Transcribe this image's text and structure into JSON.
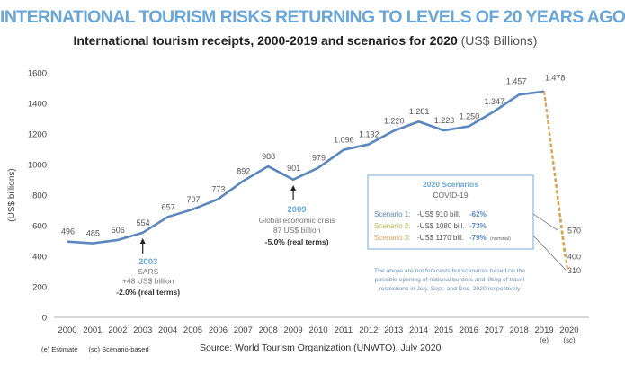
{
  "title": "INTERNATIONAL TOURISM RISKS RETURNING TO LEVELS OF 20 YEARS AGO",
  "subtitle_main": "International tourism receipts, 2000-2019 and scenarios for 2020",
  "subtitle_unit": "(US$ Billions)",
  "footnote_e": "(e) Estimate",
  "footnote_sc": "(sc) Scenario-based",
  "source": "Source: World Tourism Organization (UNWTO), July 2020",
  "colors": {
    "title": "#6aa7d8",
    "line": "#5b86be",
    "scenario1": "#5b86be",
    "scenario2": "#b7b848",
    "scenario3": "#e0a458",
    "annotation_blue": "#6aa7d8"
  },
  "chart_data": {
    "type": "line",
    "ylabel": "(US$ billions)",
    "ylim": [
      0,
      1600
    ],
    "yticks": [
      "0",
      "200",
      "400",
      "600",
      "800",
      "1000",
      "1200",
      "1400",
      "1600"
    ],
    "x_labels": [
      "2000",
      "2001",
      "2002",
      "2003",
      "2004",
      "2005",
      "2006",
      "2007",
      "2008",
      "2009",
      "2010",
      "2011",
      "2012",
      "2013",
      "2014",
      "2015",
      "2016",
      "2017",
      "2018",
      "2019",
      "2020"
    ],
    "x_sublabels": {
      "2019": "(e)",
      "2020": "(sc)"
    },
    "series": [
      {
        "x": [
          2000,
          2001,
          2002,
          2003,
          2004,
          2005,
          2006,
          2007,
          2008,
          2009,
          2010,
          2011,
          2012,
          2013,
          2014,
          2015,
          2016,
          2017,
          2018,
          2019
        ],
        "values": [
          496,
          485,
          506,
          554,
          657,
          707,
          773,
          892,
          988,
          901,
          979,
          1096,
          1132,
          1220,
          1281,
          1223,
          1250,
          1347,
          1457,
          1478
        ],
        "labels": [
          "496",
          "485",
          "506",
          "554",
          "657",
          "707",
          "773",
          "892",
          "988",
          "901",
          "979",
          "1.096",
          "1.132",
          "1.220",
          "1.281",
          "1.223",
          "1.250",
          "1.347",
          "1.457",
          "1.478"
        ]
      }
    ],
    "scenarios": [
      {
        "name": "Scenario 1",
        "value": 570,
        "label": "570"
      },
      {
        "name": "Scenario 2",
        "value": 400,
        "label": "400"
      },
      {
        "name": "Scenario 3",
        "value": 310,
        "label": "310"
      }
    ],
    "annotations": [
      {
        "year": "2003",
        "lines": [
          "SARS",
          "+48 US$ billion"
        ],
        "change": "-2.0% (real terms)"
      },
      {
        "year": "2009",
        "lines": [
          "Global economic crisis",
          "87 US$ billion"
        ],
        "change": "-5.0% (real terms)"
      }
    ],
    "scenario_box": {
      "title": "2020 Scenarios",
      "subtitle": "COVID-19",
      "rows": [
        {
          "name": "Scenario 1:",
          "amount": "-US$  910 bill.",
          "pct": "-62%",
          "note": ""
        },
        {
          "name": "Scenario 2:",
          "amount": "-US$ 1080 bill.",
          "pct": "-73%",
          "note": ""
        },
        {
          "name": "Scenario 3:",
          "amount": "-US$ 1170 bill.",
          "pct": "-79%",
          "note": "(nominal)"
        }
      ],
      "note_lines": [
        "The above are not forecasts but scenarios based on the",
        "possible opening of national borders and lifting of travel",
        "restrictions in July, Sept. and Dec. 2020 respectively"
      ]
    }
  }
}
